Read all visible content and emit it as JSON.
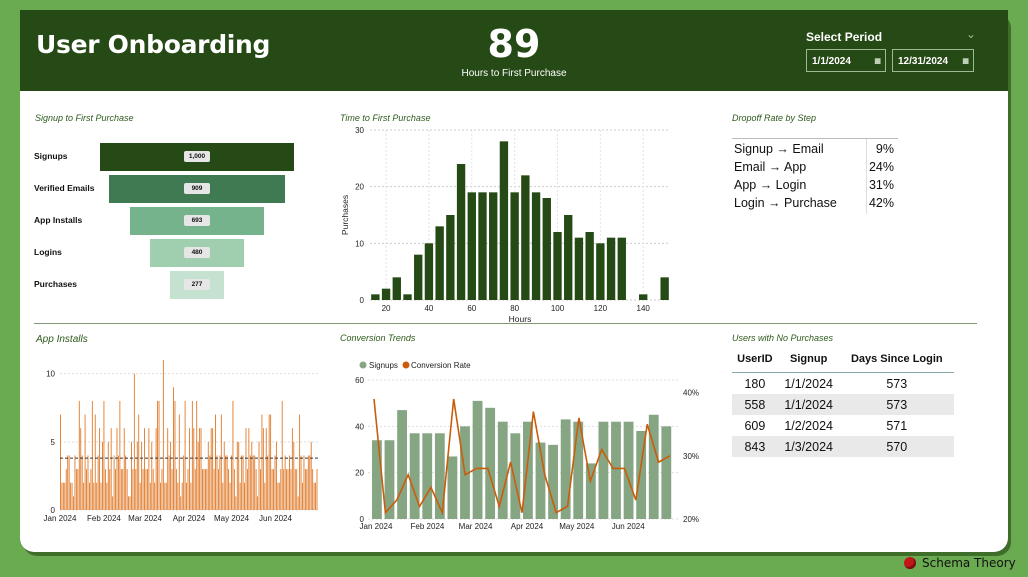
{
  "header": {
    "title": "User Onboarding",
    "kpi_value": "89",
    "kpi_label": "Hours to First Purchase",
    "period_label": "Select Period",
    "start_date": "1/1/2024",
    "end_date": "12/31/2024"
  },
  "funnel": {
    "title": "Signup to First Purchase",
    "steps": [
      {
        "label": "Signups",
        "value": "1,000",
        "n": 1000
      },
      {
        "label": "Verified Emails",
        "value": "909",
        "n": 909
      },
      {
        "label": "App Installs",
        "value": "693",
        "n": 693
      },
      {
        "label": "Logins",
        "value": "480",
        "n": 480
      },
      {
        "label": "Purchases",
        "value": "277",
        "n": 277
      }
    ],
    "colors": [
      "#264a16",
      "#3f7a52",
      "#74b38c",
      "#9fcfaf",
      "#c4e2cf"
    ]
  },
  "histogram_title": "Time to First Purchase",
  "dropoff": {
    "title": "Dropoff Rate by Step",
    "rows": [
      {
        "step": "Signup → Email",
        "rate": "9%"
      },
      {
        "step": "Email → App",
        "rate": "24%"
      },
      {
        "step": "App → Login",
        "rate": "31%"
      },
      {
        "step": "Login → Purchase",
        "rate": "42%"
      }
    ]
  },
  "installs_title": "App Installs",
  "trends_title": "Conversion Trends",
  "no_purchase": {
    "title": "Users with No Purchases",
    "headers": [
      "UserID",
      "Signup",
      "Days Since Login"
    ],
    "rows": [
      [
        "180",
        "1/1/2024",
        "573"
      ],
      [
        "558",
        "1/1/2024",
        "573"
      ],
      [
        "609",
        "1/2/2024",
        "571"
      ],
      [
        "843",
        "1/3/2024",
        "570"
      ]
    ]
  },
  "brand": "Schema Theory",
  "chart_data": [
    {
      "type": "bar",
      "title": "Time to First Purchase",
      "xlabel": "Hours",
      "ylabel": "Purchases",
      "x": [
        15,
        20,
        25,
        30,
        35,
        40,
        45,
        50,
        55,
        60,
        65,
        70,
        75,
        80,
        85,
        90,
        95,
        100,
        105,
        110,
        115,
        120,
        125,
        130,
        135,
        140,
        145,
        150
      ],
      "values": [
        1,
        2,
        4,
        1,
        8,
        10,
        13,
        15,
        24,
        19,
        19,
        19,
        28,
        19,
        22,
        19,
        18,
        12,
        15,
        11,
        12,
        10,
        11,
        11,
        0,
        1,
        0,
        4
      ],
      "xticks": [
        20,
        40,
        60,
        80,
        100,
        120,
        140
      ],
      "ylim": [
        0,
        30
      ],
      "yticks": [
        0,
        10,
        20,
        30
      ],
      "color": "#264a16"
    },
    {
      "type": "bar",
      "title": "App Installs",
      "x_range": [
        "1/1/2024",
        "6/30/2024"
      ],
      "xticks": [
        "Jan 2024",
        "Feb 2024",
        "Mar 2024",
        "Apr 2024",
        "May 2024",
        "Jun 2024"
      ],
      "ylim": [
        0,
        11
      ],
      "yticks": [
        0,
        5,
        10
      ],
      "average": 3.8,
      "color": "#e07a2a",
      "values": [
        7,
        2,
        2,
        2,
        3,
        4,
        4,
        2,
        2,
        1,
        4,
        3,
        3,
        8,
        6,
        4,
        2,
        7,
        3,
        4,
        2,
        3,
        8,
        2,
        7,
        2,
        4,
        6,
        2,
        5,
        8,
        3,
        2,
        5,
        3,
        6,
        1,
        4,
        3,
        6,
        4,
        8,
        3,
        3,
        6,
        4,
        3,
        1,
        1,
        5,
        3,
        10,
        3,
        5,
        7,
        2,
        5,
        3,
        6,
        3,
        3,
        6,
        2,
        5,
        3,
        2,
        6,
        8,
        8,
        2,
        3,
        11,
        2,
        2,
        6,
        4,
        5,
        3,
        9,
        8,
        3,
        2,
        7,
        1,
        2,
        4,
        8,
        2,
        3,
        6,
        2,
        8,
        6,
        3,
        8,
        5,
        6,
        6,
        3,
        3,
        3,
        3,
        5,
        4,
        6,
        6,
        3,
        7,
        4,
        3,
        4,
        7,
        2,
        5,
        4,
        4,
        3,
        2,
        4,
        8,
        3,
        1,
        5,
        5,
        2,
        4,
        4,
        2,
        6,
        3,
        6,
        4,
        5,
        4,
        4,
        3,
        1,
        5,
        3,
        7,
        6,
        2,
        6,
        4,
        7,
        7,
        3,
        3,
        4,
        5,
        2,
        2,
        3,
        8,
        3,
        4,
        3,
        3,
        4,
        3,
        6,
        5,
        3,
        3,
        1,
        7,
        4,
        2,
        4,
        3,
        3,
        4,
        4,
        5,
        3,
        2,
        2,
        3
      ]
    },
    {
      "type": "bar",
      "title": "Conversion Trends",
      "legend": [
        "Signups",
        "Conversion Rate"
      ],
      "xticks": [
        "Jan 2024",
        "Feb 2024",
        "Mar 2024",
        "Apr 2024",
        "May 2024",
        "Jun 2024"
      ],
      "series": [
        {
          "name": "Signups",
          "type": "bar",
          "color": "#86a582",
          "values": [
            34,
            34,
            47,
            37,
            37,
            37,
            27,
            40,
            51,
            48,
            42,
            37,
            42,
            33,
            32,
            43,
            42,
            24,
            42,
            42,
            42,
            38,
            45,
            40
          ]
        },
        {
          "name": "Conversion Rate",
          "type": "line",
          "color": "#c95d0c",
          "values": [
            0.39,
            0.21,
            0.23,
            0.27,
            0.22,
            0.25,
            0.21,
            0.39,
            0.27,
            0.28,
            0.28,
            0.22,
            0.29,
            0.21,
            0.37,
            0.27,
            0.21,
            0.22,
            0.36,
            0.26,
            0.31,
            0.28,
            0.28,
            0.23,
            0.35,
            0.29,
            0.3
          ]
        }
      ],
      "ylim_left": [
        0,
        60
      ],
      "yticks_left": [
        0,
        20,
        40,
        60
      ],
      "ylim_right": [
        0.2,
        0.42
      ],
      "yticks_right": [
        "20%",
        "30%",
        "40%"
      ]
    }
  ]
}
